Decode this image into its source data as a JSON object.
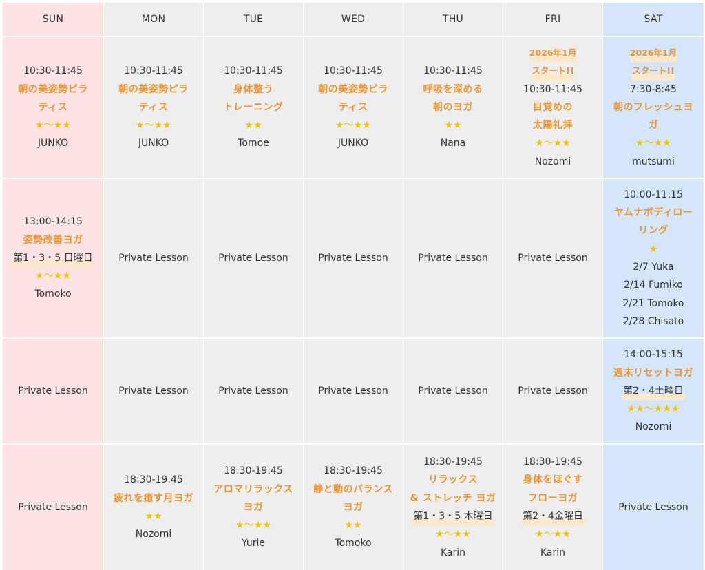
{
  "days": {
    "sun": "SUN",
    "mon": "MON",
    "tue": "TUE",
    "wed": "WED",
    "thu": "THU",
    "fri": "FRI",
    "sat": "SAT"
  },
  "private_label": "Private Lesson",
  "colors": {
    "sunday_bg": "#fde3e3",
    "weekday_bg": "#eeeeee",
    "saturday_bg": "#d5e6fa",
    "class_title": "#ec9430",
    "stars": "#f2c200"
  },
  "row1": {
    "sun": {
      "time": "10:30-11:45",
      "title_a": "朝の美姿勢ピラ",
      "title_b": "ティス",
      "level": "★〜★★",
      "instructor": "JUNKO"
    },
    "mon": {
      "time": "10:30-11:45",
      "title_a": "朝の美姿勢ピラ",
      "title_b": "ティス",
      "level": "★〜★★",
      "instructor": "JUNKO"
    },
    "tue": {
      "time": "10:30-11:45",
      "title_a": "身体整う",
      "title_b": "トレーニング",
      "level": "★★",
      "instructor": "Tomoe"
    },
    "wed": {
      "time": "10:30-11:45",
      "title_a": "朝の美姿勢ピラ",
      "title_b": "ティス",
      "level": "★〜★★",
      "instructor": "JUNKO"
    },
    "thu": {
      "time": "10:30-11:45",
      "title_a": "呼吸を深める",
      "title_b": "朝のヨガ",
      "level": "★★",
      "instructor": "Nana"
    },
    "fri": {
      "note_a": "2026年1月",
      "note_b": "スタート!!",
      "time": "10:30-11:45",
      "title_a": "目覚めの",
      "title_b": "太陽礼拝",
      "level": "★〜★★",
      "instructor": "Nozomi"
    },
    "sat": {
      "note_a": "2026年1月",
      "note_b": "スタート!!",
      "time": "7:30-8:45",
      "title_a": "朝のフレッシュヨ",
      "title_b": "ガ",
      "level": "★〜★★",
      "instructor": "mutsumi"
    }
  },
  "row2": {
    "sun": {
      "time": "13:00-14:15",
      "title": "姿勢改善ヨガ",
      "week": "第1・3・5 日曜日",
      "level": "★〜★★",
      "instructor": "Tomoko"
    },
    "sat": {
      "time": "10:00-11:15",
      "title_a": "ヤムナボディロー",
      "title_b": "リング",
      "level": "★",
      "schedule": [
        "2/7 Yuka",
        "2/14 Fumiko",
        "2/21 Tomoko",
        "2/28 Chisato"
      ]
    }
  },
  "row3": {
    "sat": {
      "time": "14:00-15:15",
      "title": "週末リセットヨガ",
      "week": "第2・4土曜日",
      "level": "★★〜★★★",
      "instructor": "Nozomi"
    }
  },
  "row4": {
    "mon": {
      "time": "18:30-19:45",
      "title": "疲れを癒す月ヨガ",
      "level": "★★",
      "instructor": "Nozomi"
    },
    "tue": {
      "time": "18:30-19:45",
      "title_a": "アロマリラックス",
      "title_b": "ヨガ",
      "level": "★〜★★",
      "instructor": "Yurie"
    },
    "wed": {
      "time": "18:30-19:45",
      "title_a": "静と動のバランス",
      "title_b": "ヨガ",
      "level": "★★",
      "instructor": "Tomoko"
    },
    "thu": {
      "time": "18:30-19:45",
      "title_a": "リラックス",
      "title_b": "& ストレッチ ヨガ",
      "week": "第1・3・5 木曜日",
      "level": "★〜★★",
      "instructor": "Karin"
    },
    "fri": {
      "time": "18:30-19:45",
      "title_a": "身体をほぐす",
      "title_b": "フローヨガ",
      "week": "第2・4金曜日",
      "level": "★〜★★",
      "instructor": "Karin"
    }
  }
}
